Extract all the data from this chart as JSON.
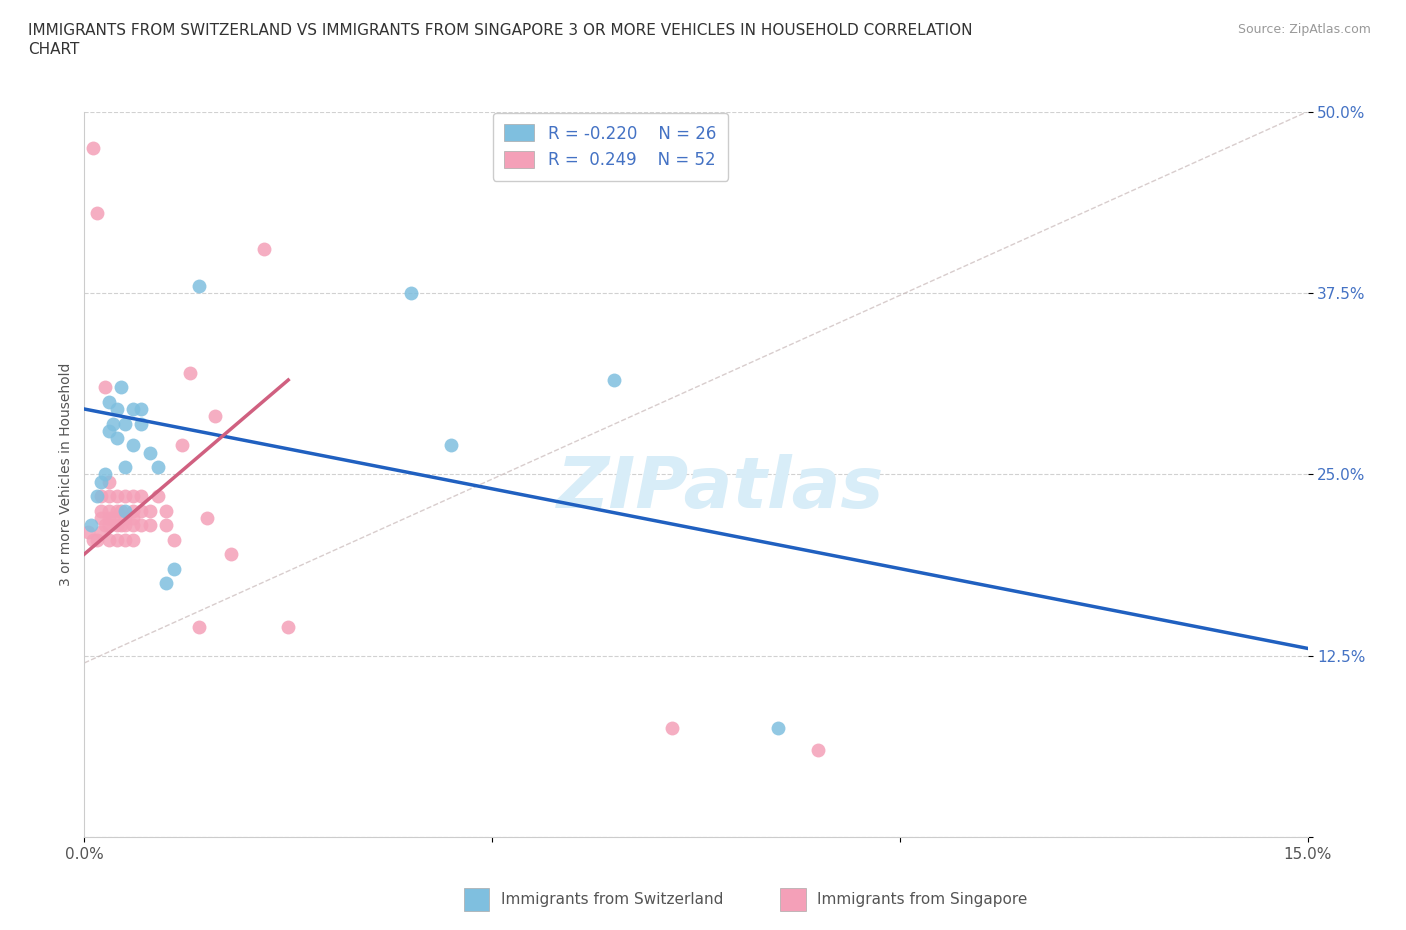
{
  "title_line1": "IMMIGRANTS FROM SWITZERLAND VS IMMIGRANTS FROM SINGAPORE 3 OR MORE VEHICLES IN HOUSEHOLD CORRELATION",
  "title_line2": "CHART",
  "source_text": "Source: ZipAtlas.com",
  "ylabel": "3 or more Vehicles in Household",
  "xlim": [
    0.0,
    0.15
  ],
  "ylim": [
    0.0,
    0.5
  ],
  "xticks": [
    0.0,
    0.05,
    0.1,
    0.15
  ],
  "yticks": [
    0.0,
    0.125,
    0.25,
    0.375,
    0.5
  ],
  "grid_color": "#cccccc",
  "background_color": "#ffffff",
  "watermark_text": "ZIPatlas",
  "r_swiss": -0.22,
  "n_swiss": 26,
  "r_sing": 0.249,
  "n_sing": 52,
  "color_swiss": "#7fbfdf",
  "color_sing": "#f4a0b8",
  "trend_color_swiss": "#2060c0",
  "trend_color_sing": "#d06080",
  "ref_line_color": "#c8b8b8",
  "swiss_x": [
    0.0008,
    0.0015,
    0.002,
    0.0025,
    0.003,
    0.003,
    0.0035,
    0.004,
    0.004,
    0.0045,
    0.005,
    0.005,
    0.005,
    0.006,
    0.006,
    0.007,
    0.007,
    0.008,
    0.009,
    0.01,
    0.011,
    0.014,
    0.04,
    0.045,
    0.065,
    0.085
  ],
  "swiss_y": [
    0.215,
    0.235,
    0.245,
    0.25,
    0.28,
    0.3,
    0.285,
    0.275,
    0.295,
    0.31,
    0.285,
    0.255,
    0.225,
    0.295,
    0.27,
    0.285,
    0.295,
    0.265,
    0.255,
    0.175,
    0.185,
    0.38,
    0.375,
    0.27,
    0.315,
    0.075
  ],
  "sing_x": [
    0.0005,
    0.001,
    0.001,
    0.0015,
    0.0015,
    0.002,
    0.002,
    0.002,
    0.002,
    0.0025,
    0.0025,
    0.003,
    0.003,
    0.003,
    0.003,
    0.003,
    0.003,
    0.0035,
    0.004,
    0.004,
    0.004,
    0.004,
    0.0045,
    0.0045,
    0.005,
    0.005,
    0.005,
    0.005,
    0.006,
    0.006,
    0.006,
    0.006,
    0.006,
    0.007,
    0.007,
    0.007,
    0.008,
    0.008,
    0.009,
    0.01,
    0.01,
    0.011,
    0.012,
    0.013,
    0.014,
    0.015,
    0.016,
    0.018,
    0.022,
    0.025,
    0.072,
    0.09
  ],
  "sing_y": [
    0.21,
    0.205,
    0.475,
    0.205,
    0.43,
    0.21,
    0.22,
    0.225,
    0.235,
    0.215,
    0.31,
    0.205,
    0.215,
    0.22,
    0.225,
    0.235,
    0.245,
    0.22,
    0.205,
    0.215,
    0.225,
    0.235,
    0.215,
    0.225,
    0.205,
    0.215,
    0.22,
    0.235,
    0.205,
    0.215,
    0.22,
    0.225,
    0.235,
    0.215,
    0.225,
    0.235,
    0.215,
    0.225,
    0.235,
    0.215,
    0.225,
    0.205,
    0.27,
    0.32,
    0.145,
    0.22,
    0.29,
    0.195,
    0.405,
    0.145,
    0.075,
    0.06
  ]
}
